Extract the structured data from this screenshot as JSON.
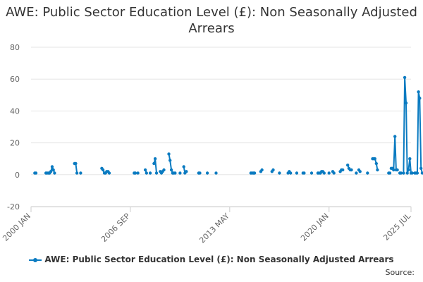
{
  "chart_data": {
    "type": "line",
    "title": "AWE: Public Sector Education Level (£): Non Seasonally Adjusted Arrears",
    "xlabel": "",
    "ylabel": "",
    "ylim": [
      -20,
      80
    ],
    "yticks": [
      -20,
      0,
      20,
      40,
      60,
      80
    ],
    "xlim": [
      2000.0,
      2025.5
    ],
    "xticks": [
      {
        "value": 2000.0,
        "label": "2000 JAN"
      },
      {
        "value": 2006.667,
        "label": "2006 SEP"
      },
      {
        "value": 2013.333,
        "label": "2013 MAY"
      },
      {
        "value": 2020.0,
        "label": "2020 JAN"
      },
      {
        "value": 2025.5,
        "label": "2025 JUL"
      }
    ],
    "grid": true,
    "legend_position": "bottom",
    "color": "#0b7bc1",
    "series": [
      {
        "name": "AWE: Public Sector Education Level (£): Non Seasonally Adjusted Arrears",
        "segments": [
          [
            [
              2000.25,
              1
            ],
            [
              2000.33,
              1
            ]
          ],
          [
            [
              2001.0,
              1
            ],
            [
              2001.08,
              1
            ],
            [
              2001.17,
              1
            ],
            [
              2001.25,
              1
            ],
            [
              2001.33,
              2
            ],
            [
              2001.42,
              5
            ],
            [
              2001.5,
              3
            ],
            [
              2001.58,
              1
            ]
          ],
          [
            [
              2002.92,
              7
            ],
            [
              2003.0,
              7
            ],
            [
              2003.08,
              1
            ]
          ],
          [
            [
              2003.33,
              1
            ]
          ],
          [
            [
              2004.75,
              4
            ],
            [
              2004.83,
              3
            ],
            [
              2004.92,
              1
            ],
            [
              2005.0,
              1
            ],
            [
              2005.08,
              2
            ],
            [
              2005.17,
              2
            ],
            [
              2005.25,
              1
            ]
          ],
          [
            [
              2006.92,
              1
            ],
            [
              2007.0,
              1
            ]
          ],
          [
            [
              2007.17,
              1
            ]
          ],
          [
            [
              2007.67,
              3
            ],
            [
              2007.75,
              1
            ]
          ],
          [
            [
              2008.0,
              1
            ]
          ],
          [
            [
              2008.25,
              7
            ],
            [
              2008.33,
              10
            ],
            [
              2008.42,
              1
            ]
          ],
          [
            [
              2008.67,
              2
            ],
            [
              2008.75,
              1
            ],
            [
              2008.83,
              2
            ],
            [
              2008.92,
              3
            ]
          ],
          [
            [
              2009.25,
              13
            ],
            [
              2009.33,
              9
            ],
            [
              2009.42,
              3
            ],
            [
              2009.5,
              1
            ],
            [
              2009.58,
              1
            ],
            [
              2009.67,
              1
            ]
          ],
          [
            [
              2010.0,
              1
            ]
          ],
          [
            [
              2010.25,
              5
            ],
            [
              2010.33,
              1
            ],
            [
              2010.42,
              2
            ]
          ],
          [
            [
              2011.25,
              1
            ],
            [
              2011.33,
              1
            ]
          ],
          [
            [
              2011.83,
              1
            ]
          ],
          [
            [
              2012.42,
              1
            ]
          ],
          [
            [
              2014.75,
              1
            ],
            [
              2014.83,
              1
            ],
            [
              2014.92,
              1
            ],
            [
              2015.0,
              1
            ]
          ],
          [
            [
              2015.42,
              2
            ],
            [
              2015.5,
              3
            ]
          ],
          [
            [
              2016.17,
              2
            ],
            [
              2016.25,
              3
            ]
          ],
          [
            [
              2016.67,
              1
            ]
          ],
          [
            [
              2017.25,
              1
            ],
            [
              2017.33,
              2
            ],
            [
              2017.42,
              1
            ]
          ],
          [
            [
              2017.83,
              1
            ]
          ],
          [
            [
              2018.25,
              1
            ],
            [
              2018.33,
              1
            ]
          ],
          [
            [
              2018.83,
              1
            ]
          ],
          [
            [
              2019.25,
              1
            ],
            [
              2019.33,
              1
            ],
            [
              2019.42,
              1
            ],
            [
              2019.5,
              2
            ],
            [
              2019.58,
              2
            ],
            [
              2019.67,
              1
            ]
          ],
          [
            [
              2020.0,
              1
            ]
          ],
          [
            [
              2020.25,
              2
            ],
            [
              2020.33,
              1
            ]
          ],
          [
            [
              2020.75,
              2
            ],
            [
              2020.83,
              3
            ],
            [
              2020.92,
              3
            ]
          ],
          [
            [
              2021.25,
              6
            ],
            [
              2021.33,
              4
            ],
            [
              2021.42,
              3
            ],
            [
              2021.5,
              3
            ]
          ],
          [
            [
              2021.83,
              1
            ]
          ],
          [
            [
              2022.0,
              3
            ],
            [
              2022.08,
              2
            ]
          ],
          [
            [
              2022.58,
              1
            ]
          ],
          [
            [
              2022.92,
              10
            ],
            [
              2023.0,
              10
            ],
            [
              2023.08,
              10
            ],
            [
              2023.17,
              7
            ],
            [
              2023.25,
              3
            ]
          ],
          [
            [
              2024.0,
              1
            ],
            [
              2024.08,
              1
            ]
          ],
          [
            [
              2024.17,
              4
            ],
            [
              2024.25,
              4
            ],
            [
              2024.33,
              3
            ],
            [
              2024.42,
              24
            ],
            [
              2024.5,
              3
            ],
            [
              2024.58,
              3
            ]
          ],
          [
            [
              2024.75,
              1
            ],
            [
              2024.83,
              1
            ]
          ],
          [
            [
              2025.0,
              1
            ],
            [
              2025.08,
              61
            ],
            [
              2025.17,
              45
            ],
            [
              2025.25,
              1
            ],
            [
              2025.33,
              3
            ],
            [
              2025.42,
              10
            ],
            [
              2025.5,
              1
            ],
            [
              2025.58,
              1
            ]
          ],
          [
            [
              2025.75,
              1
            ],
            [
              2025.83,
              1
            ],
            [
              2025.92,
              1
            ],
            [
              2026.0,
              52
            ],
            [
              2026.08,
              48
            ],
            [
              2026.17,
              4
            ],
            [
              2026.25,
              1
            ]
          ],
          [
            [
              2026.58,
              1
            ]
          ],
          [
            [
              2026.92,
              6
            ],
            [
              2027.0,
              51
            ],
            [
              2027.08,
              21
            ],
            [
              2027.17,
              1
            ],
            [
              2027.25,
              1
            ],
            [
              2027.33,
              1
            ]
          ]
        ]
      }
    ]
  },
  "legend": {
    "label": "AWE: Public Sector Education Level (£): Non Seasonally Adjusted Arrears"
  },
  "source_label": "Source:"
}
